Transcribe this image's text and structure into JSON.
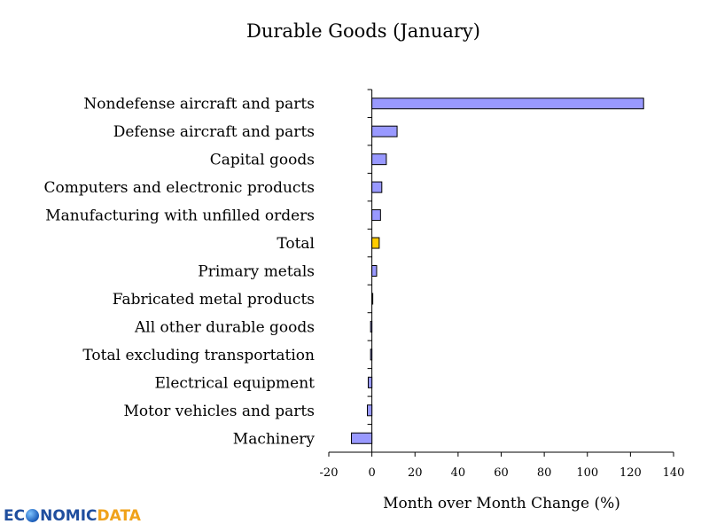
{
  "chart_data": {
    "type": "bar",
    "orientation": "horizontal",
    "title": "Durable Goods (January)",
    "xlabel": "Month over Month Change (%)",
    "ylabel": "",
    "xlim": [
      -20,
      140
    ],
    "xticks": [
      -20,
      0,
      20,
      40,
      60,
      80,
      100,
      120,
      140
    ],
    "grid": false,
    "categories": [
      "Nondefense aircraft and parts",
      "Defense aircraft and parts",
      "Capital goods",
      "Computers and electronic products",
      "Manufacturing with unfilled orders",
      "Total",
      "Primary metals",
      "Fabricated metal products",
      "All other durable goods",
      "Total excluding transportation",
      "Electrical equipment",
      "Motor vehicles and parts",
      "Machinery"
    ],
    "values": [
      126.1,
      11.7,
      6.7,
      4.6,
      4.0,
      3.4,
      2.2,
      0.0,
      -0.6,
      -0.6,
      -1.7,
      -2.1,
      -9.5
    ],
    "bar_colors": [
      "#9999ff",
      "#9999ff",
      "#9999ff",
      "#9999ff",
      "#9999ff",
      "#ffcc00",
      "#9999ff",
      "#9999ff",
      "#9999ff",
      "#9999ff",
      "#9999ff",
      "#9999ff",
      "#9999ff"
    ]
  },
  "logo": {
    "part1": "EC",
    "part2": "NOMIC",
    "part3": "DATA",
    "icon": "globe-icon"
  }
}
